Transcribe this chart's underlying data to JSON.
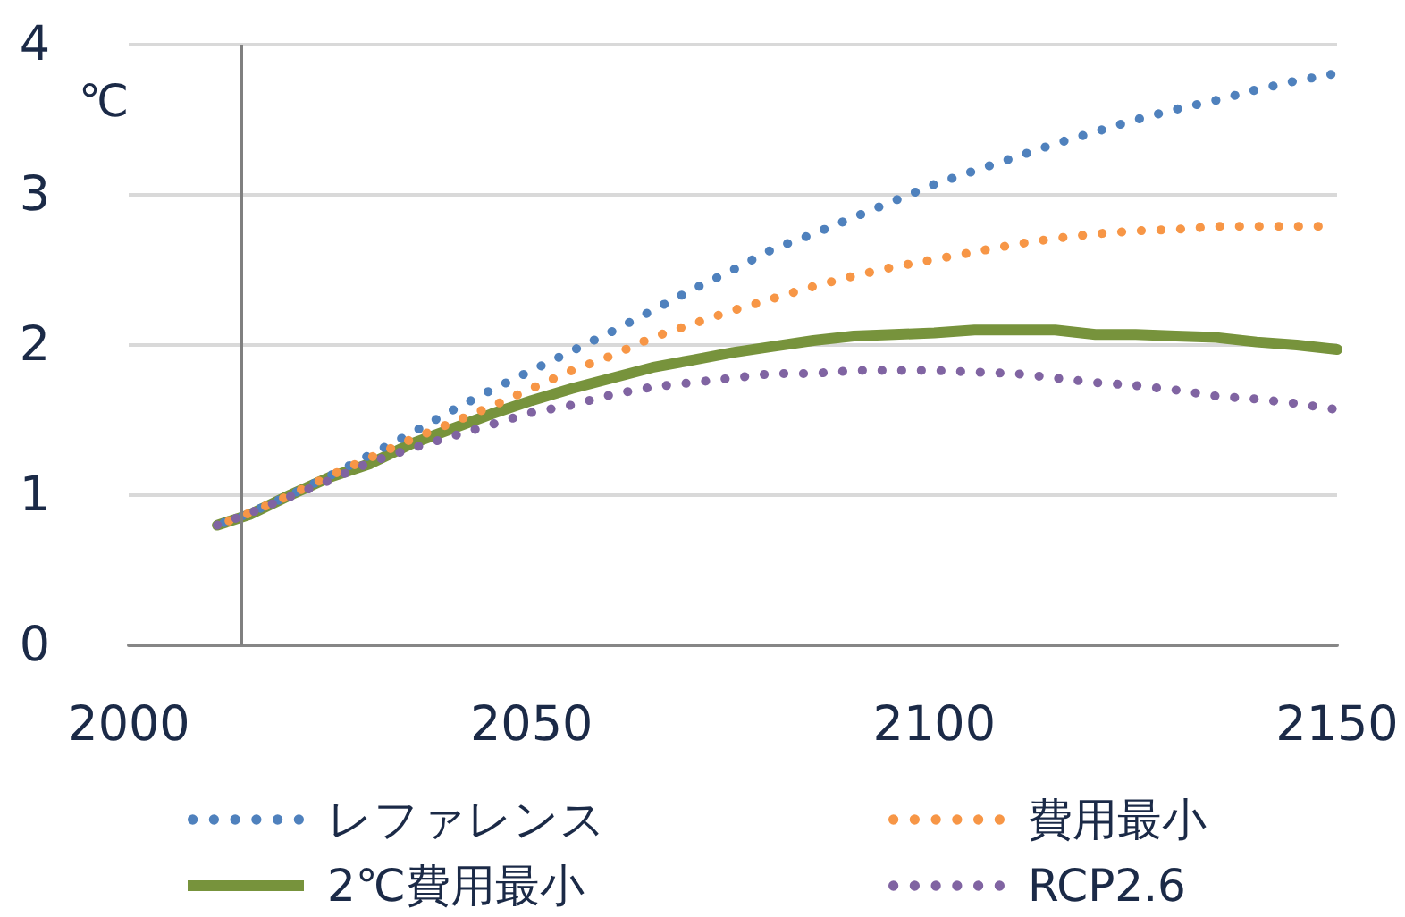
{
  "chart_data": {
    "type": "line",
    "ylabel": "℃",
    "x": [
      2011,
      2015,
      2020,
      2025,
      2030,
      2035,
      2040,
      2045,
      2050,
      2055,
      2060,
      2065,
      2070,
      2075,
      2080,
      2085,
      2090,
      2095,
      2100,
      2105,
      2110,
      2115,
      2120,
      2125,
      2130,
      2135,
      2140,
      2145,
      2150
    ],
    "series": [
      {
        "name": "レファレンス",
        "color": "#4f81bd",
        "line_style": "dotted",
        "values": [
          0.8,
          0.88,
          1.0,
          1.13,
          1.27,
          1.41,
          1.56,
          1.7,
          1.83,
          1.96,
          2.09,
          2.23,
          2.37,
          2.5,
          2.64,
          2.74,
          2.85,
          2.96,
          3.07,
          3.16,
          3.25,
          3.34,
          3.42,
          3.5,
          3.57,
          3.63,
          3.7,
          3.76,
          3.81
        ]
      },
      {
        "name": "費用最小",
        "color": "#f79646",
        "line_style": "dotted",
        "values": [
          0.8,
          0.88,
          1.0,
          1.13,
          1.25,
          1.37,
          1.48,
          1.59,
          1.71,
          1.83,
          1.93,
          2.05,
          2.14,
          2.23,
          2.31,
          2.39,
          2.46,
          2.52,
          2.57,
          2.62,
          2.67,
          2.71,
          2.74,
          2.76,
          2.77,
          2.79,
          2.79,
          2.79,
          2.79
        ]
      },
      {
        "name": "2℃費用最小",
        "color": "#77933c",
        "line_style": "solid",
        "values": [
          0.8,
          0.87,
          1.0,
          1.12,
          1.21,
          1.34,
          1.44,
          1.54,
          1.63,
          1.71,
          1.78,
          1.85,
          1.9,
          1.95,
          1.99,
          2.03,
          2.06,
          2.07,
          2.08,
          2.1,
          2.1,
          2.1,
          2.07,
          2.07,
          2.06,
          2.05,
          2.02,
          2.0,
          1.97
        ]
      },
      {
        "name": "RCP2.6",
        "color": "#8064a2",
        "line_style": "dotted",
        "values": [
          0.8,
          0.88,
          0.99,
          1.1,
          1.22,
          1.31,
          1.39,
          1.47,
          1.55,
          1.6,
          1.67,
          1.72,
          1.75,
          1.78,
          1.81,
          1.81,
          1.83,
          1.83,
          1.83,
          1.82,
          1.81,
          1.78,
          1.75,
          1.73,
          1.7,
          1.66,
          1.64,
          1.61,
          1.57
        ]
      }
    ],
    "xlim": [
      2000,
      2150
    ],
    "xticks": [
      2000,
      2050,
      2100,
      2150
    ],
    "ylim": [
      0,
      4
    ],
    "yticks": [
      0,
      1,
      2,
      3,
      4
    ],
    "ref_lines": [
      {
        "axis": "x",
        "value": 2014,
        "color": "#808080"
      }
    ],
    "grid": "y",
    "legend": "bottom",
    "marker": "none"
  }
}
